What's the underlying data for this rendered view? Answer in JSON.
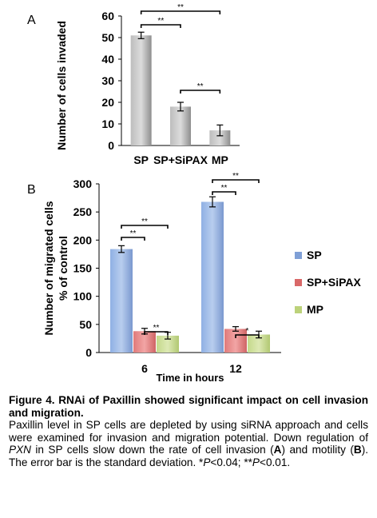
{
  "chart_data": [
    {
      "type": "bar",
      "panel_label": "A",
      "categories": [
        "SP",
        "SP+SiPAX",
        "MP"
      ],
      "values": [
        51,
        18,
        7
      ],
      "errors": [
        1.5,
        2,
        2.5
      ],
      "colors": [
        "#9a9a9a",
        "#9a9a9a",
        "#9a9a9a"
      ],
      "title": "",
      "xlabel": "",
      "ylabel": "Number of cells invaded",
      "ylim": [
        0,
        60
      ],
      "yticks": [
        0,
        10,
        20,
        30,
        40,
        50,
        60
      ],
      "grid": false,
      "significance": [
        {
          "from": 0,
          "to": 1,
          "label": "**"
        },
        {
          "from": 0,
          "to": 2,
          "label": "**"
        },
        {
          "from": 1,
          "to": 2,
          "label": "**"
        }
      ]
    },
    {
      "type": "bar",
      "panel_label": "B",
      "categories": [
        "6",
        "12"
      ],
      "series": [
        {
          "name": "SP",
          "values": [
            184,
            268
          ],
          "errors": [
            6,
            9
          ],
          "color": "#7f9fd6"
        },
        {
          "name": "SP+SiPAX",
          "values": [
            38,
            42
          ],
          "errors": [
            5,
            4
          ],
          "color": "#d96868"
        },
        {
          "name": "MP",
          "values": [
            30,
            32
          ],
          "errors": [
            6,
            6
          ],
          "color": "#bcd27a"
        }
      ],
      "title": "",
      "xlabel": "Time in hours",
      "ylabel": [
        "Number of migrated cells",
        "% of control"
      ],
      "ylim": [
        0,
        300
      ],
      "yticks": [
        0,
        50,
        100,
        150,
        200,
        250,
        300
      ],
      "grid": false,
      "legend_position": "right",
      "significance": [
        {
          "group": 0,
          "from": 0,
          "to": 1,
          "label": "**"
        },
        {
          "group": 0,
          "from": 0,
          "to": 2,
          "label": "**"
        },
        {
          "group": 0,
          "from": 1,
          "to": 2,
          "label": "**"
        },
        {
          "group": 1,
          "from": 0,
          "to": 1,
          "label": "**"
        },
        {
          "group": 1,
          "from": 0,
          "to": 2,
          "label": "**"
        },
        {
          "group": 1,
          "from": 1,
          "to": 2,
          "label": "*"
        }
      ]
    }
  ],
  "caption": {
    "title": "Figure 4. RNAi of Paxillin showed significant impact on cell invasion and migration.",
    "body": [
      {
        "t": "Paxillin level in SP cells are depleted by using siRNA approach and cells were examined for invasion and migration potential. Down regulation of ",
        "s": ""
      },
      {
        "t": "PXN",
        "s": "i"
      },
      {
        "t": " in SP cells slow down the rate of cell invasion (",
        "s": ""
      },
      {
        "t": "A",
        "s": "b"
      },
      {
        "t": ") and motility (",
        "s": ""
      },
      {
        "t": "B",
        "s": "b"
      },
      {
        "t": "). The error bar is the standard deviation. *",
        "s": ""
      },
      {
        "t": "P",
        "s": "i"
      },
      {
        "t": "<0.04; **",
        "s": ""
      },
      {
        "t": "P",
        "s": "i"
      },
      {
        "t": "<0.01.",
        "s": ""
      }
    ]
  }
}
